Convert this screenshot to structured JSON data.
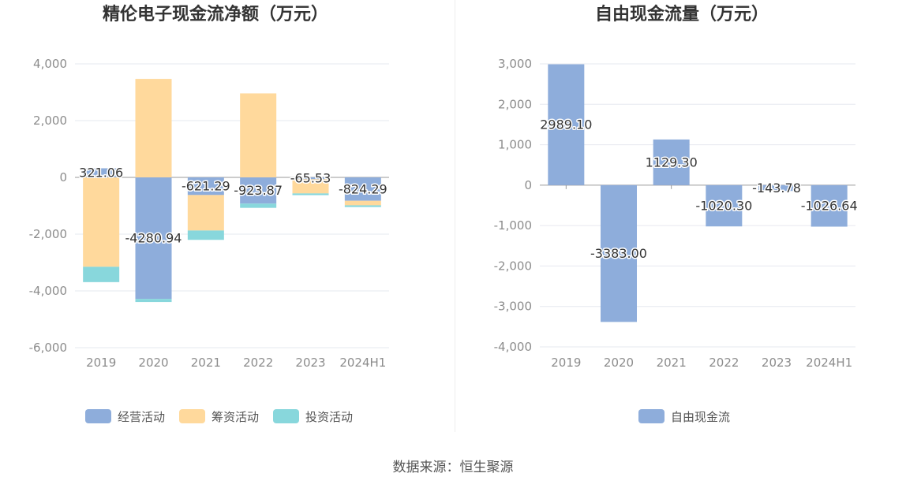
{
  "source": "数据来源：恒生聚源",
  "chart_data": [
    {
      "type": "bar",
      "stacked": true,
      "title": "精伦电子现金流净额（万元）",
      "categories": [
        "2019",
        "2020",
        "2021",
        "2022",
        "2023",
        "2024H1"
      ],
      "ylim": [
        -6000,
        4000
      ],
      "yticks": [
        4000,
        2000,
        0,
        -2000,
        -4000,
        -6000
      ],
      "ytick_labels": [
        "4,000",
        "2,000",
        "0",
        "-2,000",
        "-4,000",
        "-6,000"
      ],
      "grid": true,
      "legend": "bottom",
      "series": [
        {
          "name": "经营活动",
          "color": "#8eaddb",
          "values": [
            321.06,
            -4280.94,
            -621.29,
            -923.87,
            -65.53,
            -824.29
          ],
          "labels": [
            "321.06",
            "-4280.94",
            "-621.29",
            "-923.87",
            "-65.53",
            "-824.29"
          ]
        },
        {
          "name": "筹资活动",
          "color": "#ffd99c",
          "values": [
            -3150,
            3470,
            -1250,
            2960,
            -500,
            -160
          ]
        },
        {
          "name": "投资活动",
          "color": "#88d7dc",
          "values": [
            -540,
            -110,
            -330,
            -150,
            -60,
            -60
          ]
        }
      ]
    },
    {
      "type": "bar",
      "title": "自由现金流量（万元）",
      "categories": [
        "2019",
        "2020",
        "2021",
        "2022",
        "2023",
        "2024H1"
      ],
      "ylim": [
        -4000,
        3000
      ],
      "yticks": [
        3000,
        2000,
        1000,
        0,
        -1000,
        -2000,
        -3000,
        -4000
      ],
      "ytick_labels": [
        "3,000",
        "2,000",
        "1,000",
        "0",
        "-1,000",
        "-2,000",
        "-3,000",
        "-4,000"
      ],
      "grid": true,
      "legend": "bottom",
      "series": [
        {
          "name": "自由现金流",
          "color": "#8eaddb",
          "values": [
            2989.1,
            -3383.0,
            1129.3,
            -1020.3,
            -143.78,
            -1026.64
          ],
          "labels": [
            "2989.10",
            "-3383.00",
            "1129.30",
            "-1020.30",
            "-143.78",
            "-1026.64"
          ]
        }
      ]
    }
  ]
}
